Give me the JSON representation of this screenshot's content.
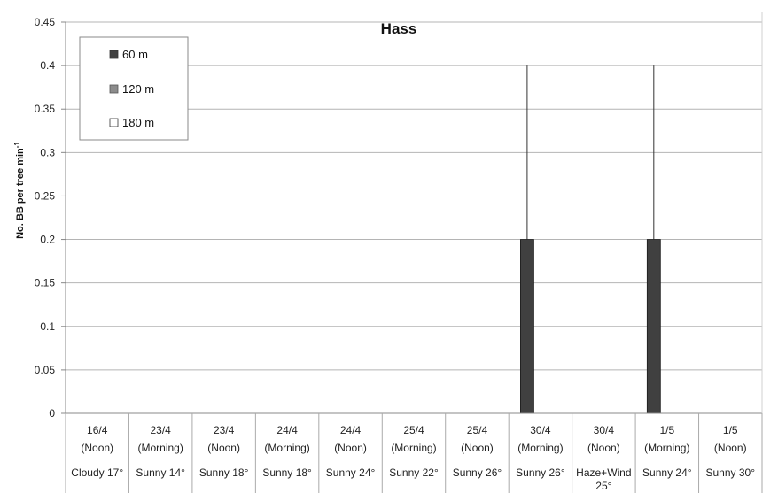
{
  "chart_data": {
    "type": "bar",
    "title": "Hass",
    "ylabel": "No. BB per tree min",
    "ylabel_superscript": "-1",
    "xlabel": "",
    "ylim": [
      0,
      0.45
    ],
    "yticks": [
      "0",
      "0.05",
      "0.1",
      "0.15",
      "0.2",
      "0.25",
      "0.3",
      "0.35",
      "0.4",
      "0.45"
    ],
    "grid": true,
    "legend_position": "top-left",
    "categories": [
      {
        "date": "16/4",
        "time": "(Noon)",
        "weather": "Cloudy 17°"
      },
      {
        "date": "23/4",
        "time": "(Morning)",
        "weather": "Sunny 14°"
      },
      {
        "date": "23/4",
        "time": "(Noon)",
        "weather": "Sunny 18°"
      },
      {
        "date": "24/4",
        "time": "(Morning)",
        "weather": "Sunny 18°"
      },
      {
        "date": "24/4",
        "time": "(Noon)",
        "weather": "Sunny 24°"
      },
      {
        "date": "25/4",
        "time": "(Morning)",
        "weather": "Sunny 22°"
      },
      {
        "date": "25/4",
        "time": "(Noon)",
        "weather": "Sunny 26°"
      },
      {
        "date": "30/4",
        "time": "(Morning)",
        "weather": "Sunny 26°"
      },
      {
        "date": "30/4",
        "time": "(Noon)",
        "weather": "Haze+Wind 25°"
      },
      {
        "date": "1/5",
        "time": "(Morning)",
        "weather": "Sunny 24°"
      },
      {
        "date": "1/5",
        "time": "(Noon)",
        "weather": "Sunny 30°"
      }
    ],
    "series": [
      {
        "name": "60 m",
        "color": "#404040",
        "values": [
          0,
          0,
          0,
          0,
          0,
          0,
          0,
          0.2,
          0,
          0.2,
          0
        ],
        "error": [
          0,
          0,
          0,
          0,
          0,
          0,
          0,
          0.2,
          0,
          0.2,
          0
        ]
      },
      {
        "name": "120 m",
        "color": "#8c8c8c",
        "values": [
          0,
          0,
          0,
          0,
          0,
          0,
          0,
          0,
          0,
          0,
          0
        ],
        "error": [
          0,
          0,
          0,
          0,
          0,
          0,
          0,
          0,
          0,
          0,
          0
        ]
      },
      {
        "name": "180 m",
        "color": "#ffffff",
        "values": [
          0,
          0,
          0,
          0,
          0,
          0,
          0,
          0,
          0,
          0,
          0
        ],
        "error": [
          0,
          0,
          0,
          0,
          0,
          0,
          0,
          0,
          0,
          0,
          0
        ]
      }
    ]
  }
}
